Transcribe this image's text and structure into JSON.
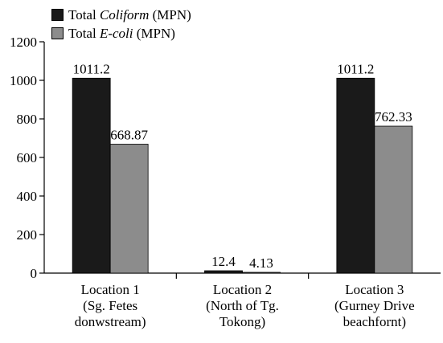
{
  "chart_data": {
    "type": "bar",
    "categories": [
      [
        "Location 1",
        "(Sg. Fetes",
        "donwstream)"
      ],
      [
        "Location 2",
        "(North of Tg.",
        "Tokong)"
      ],
      [
        "Location 3",
        "(Gurney Drive",
        "beachfornt)"
      ]
    ],
    "series": [
      {
        "name_parts": [
          "Total ",
          "Coliform",
          " (MPN)"
        ],
        "color": "#1a1a1a",
        "values": [
          1011.2,
          12.4,
          1011.2
        ],
        "labels": [
          "1011.2",
          "12.4",
          "1011.2"
        ]
      },
      {
        "name_parts": [
          "Total ",
          "E-coli",
          " (MPN)"
        ],
        "color": "#8c8c8c",
        "values": [
          668.87,
          4.13,
          762.33
        ],
        "labels": [
          "668.87",
          "4.13",
          "762.33"
        ]
      }
    ],
    "ylim": [
      0,
      1200
    ],
    "yticks": [
      0,
      200,
      400,
      600,
      800,
      1000,
      1200
    ],
    "ytick_labels": [
      "0",
      "200",
      "400",
      "600",
      "800",
      "1000",
      "1200"
    ],
    "grid": false,
    "legend_position": "top-left"
  }
}
